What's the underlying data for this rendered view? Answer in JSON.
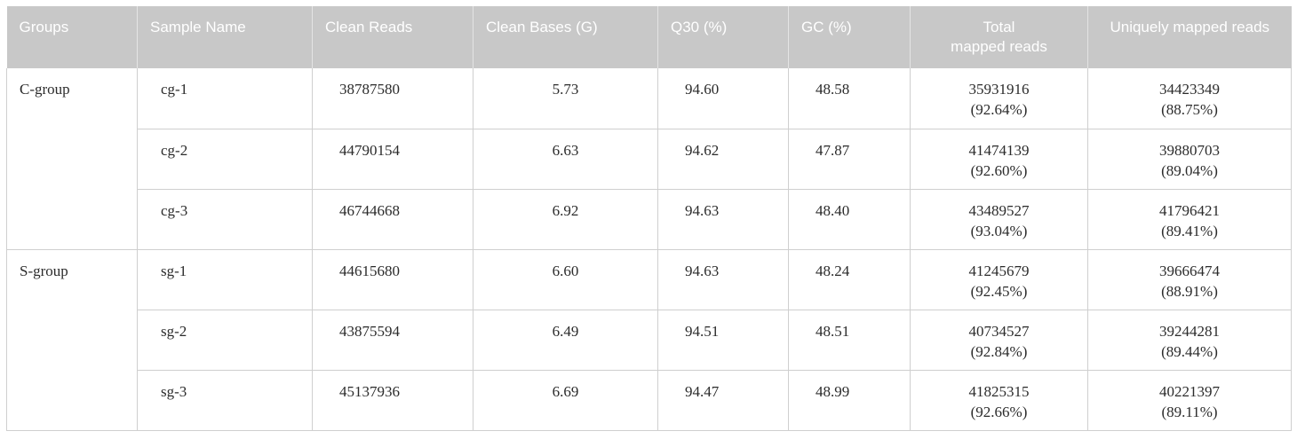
{
  "headers": [
    "Groups",
    "Sample Name",
    "Clean Reads",
    "Clean Bases (G)",
    "Q30 (%)",
    "GC (%)",
    "Total\nmapped reads",
    "Uniquely mapped reads"
  ],
  "header_total_line1": "Total",
  "header_total_line2": "mapped reads",
  "groups": [
    {
      "name": "C-group",
      "rows": [
        {
          "sample": "cg-1",
          "clean_reads": "38787580",
          "clean_bases": "5.73",
          "q30": "94.60",
          "gc": "48.58",
          "total_mapped": "35931916",
          "total_pct": "(92.64%)",
          "unique_mapped": "34423349",
          "unique_pct": "(88.75%)"
        },
        {
          "sample": "cg-2",
          "clean_reads": "44790154",
          "clean_bases": "6.63",
          "q30": "94.62",
          "gc": "47.87",
          "total_mapped": "41474139",
          "total_pct": "(92.60%)",
          "unique_mapped": "39880703",
          "unique_pct": "(89.04%)"
        },
        {
          "sample": "cg-3",
          "clean_reads": "46744668",
          "clean_bases": "6.92",
          "q30": "94.63",
          "gc": "48.40",
          "total_mapped": "43489527",
          "total_pct": "(93.04%)",
          "unique_mapped": "41796421",
          "unique_pct": "(89.41%)"
        }
      ]
    },
    {
      "name": "S-group",
      "rows": [
        {
          "sample": "sg-1",
          "clean_reads": "44615680",
          "clean_bases": "6.60",
          "q30": "94.63",
          "gc": "48.24",
          "total_mapped": "41245679",
          "total_pct": "(92.45%)",
          "unique_mapped": "39666474",
          "unique_pct": "(88.91%)"
        },
        {
          "sample": "sg-2",
          "clean_reads": "43875594",
          "clean_bases": "6.49",
          "q30": "94.51",
          "gc": "48.51",
          "total_mapped": "40734527",
          "total_pct": "(92.84%)",
          "unique_mapped": "39244281",
          "unique_pct": "(89.44%)"
        },
        {
          "sample": "sg-3",
          "clean_reads": "45137936",
          "clean_bases": "6.69",
          "q30": "94.47",
          "gc": "48.99",
          "total_mapped": "41825315",
          "total_pct": "(92.66%)",
          "unique_mapped": "40221397",
          "unique_pct": "(89.11%)"
        }
      ]
    }
  ],
  "colors": {
    "header_bg": "#c8c8c8",
    "header_text": "#ffffff",
    "border": "#cfcfcf",
    "text": "#2b2b2b"
  }
}
